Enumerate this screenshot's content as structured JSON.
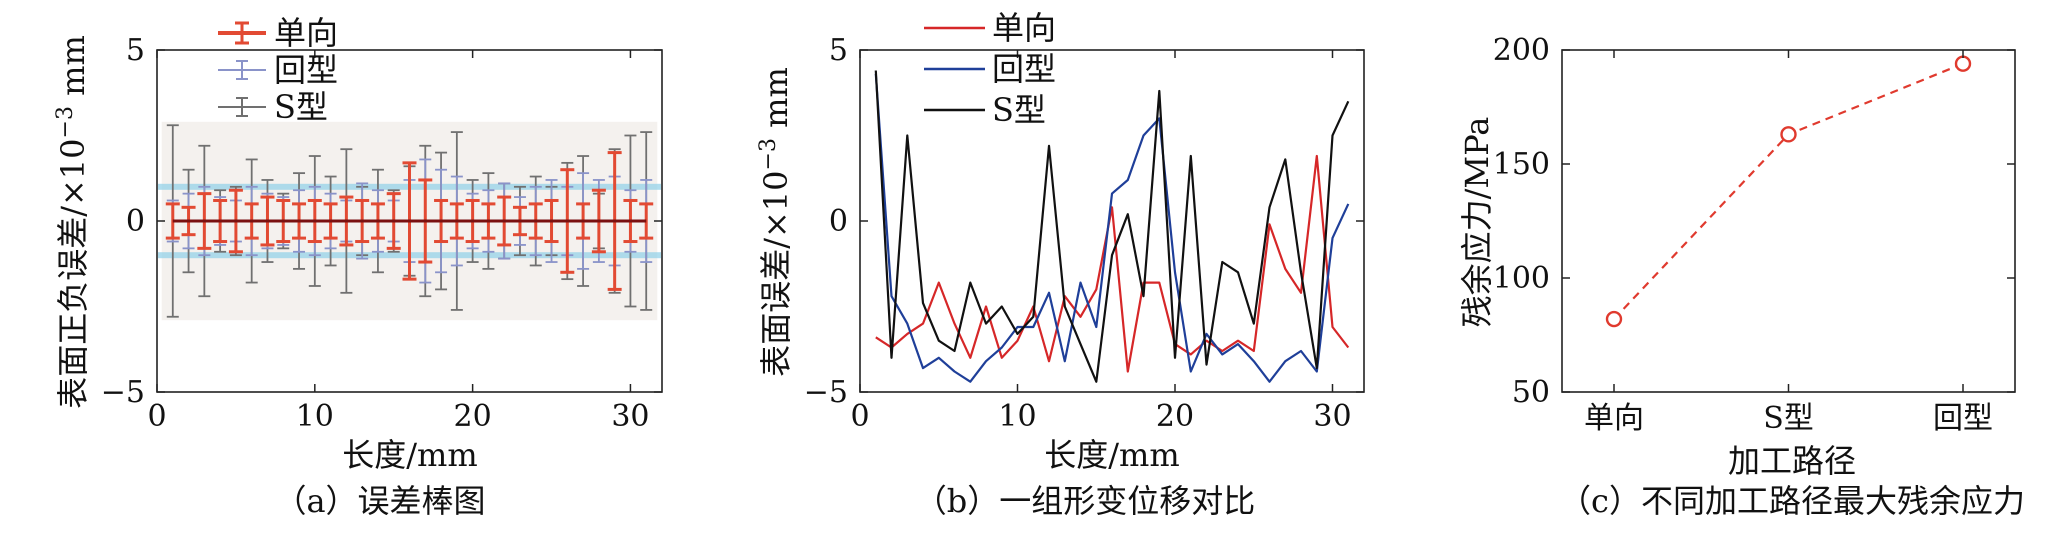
{
  "chart_data": [
    {
      "type": "errorbar",
      "caption": "（a）误差棒图",
      "xlabel": "长度/mm",
      "ylabel": "表面正负误差/×10⁻³ mm",
      "xlim": [
        0,
        32
      ],
      "ylim": [
        -5,
        5
      ],
      "xticks": [
        0,
        10,
        20,
        30
      ],
      "yticks": [
        -5,
        0,
        5
      ],
      "tick_labels_x": [
        "0",
        "10",
        "20",
        "30"
      ],
      "tick_labels_y": [
        "−5",
        "0",
        "5"
      ],
      "legend": [
        "单向",
        "回型",
        "S型"
      ],
      "legend_position": "top-left",
      "band": {
        "upper": 1.0,
        "lower": -1.0,
        "color": "#8fd0e8"
      },
      "x": [
        1,
        2,
        3,
        4,
        5,
        6,
        7,
        8,
        9,
        10,
        11,
        12,
        13,
        14,
        15,
        16,
        17,
        18,
        19,
        20,
        21,
        22,
        23,
        24,
        25,
        26,
        27,
        28,
        29,
        30,
        31
      ],
      "series": [
        {
          "name": "单向",
          "color": "#e24a33",
          "errors": [
            0.5,
            0.4,
            0.8,
            0.6,
            0.9,
            0.5,
            0.7,
            0.6,
            0.5,
            0.6,
            0.5,
            0.7,
            0.6,
            0.5,
            0.8,
            1.7,
            1.2,
            0.6,
            0.5,
            0.6,
            0.5,
            0.7,
            0.4,
            0.5,
            0.6,
            1.5,
            0.5,
            0.9,
            2.0,
            0.6,
            0.5
          ]
        },
        {
          "name": "回型",
          "color": "#8a93c9",
          "errors": [
            0.6,
            0.8,
            1.0,
            0.7,
            0.6,
            1.0,
            0.8,
            0.7,
            0.9,
            1.0,
            0.8,
            0.6,
            1.1,
            0.9,
            0.6,
            1.2,
            1.8,
            1.5,
            1.3,
            0.8,
            0.9,
            1.1,
            0.7,
            1.0,
            1.2,
            1.0,
            1.4,
            1.2,
            1.3,
            0.9,
            1.2
          ]
        },
        {
          "name": "S型",
          "color": "#707070",
          "errors": [
            2.8,
            1.5,
            2.2,
            0.9,
            1.0,
            1.8,
            1.2,
            0.8,
            1.4,
            1.9,
            1.3,
            2.1,
            1.0,
            1.5,
            0.9,
            1.6,
            2.2,
            2.0,
            2.6,
            1.2,
            1.4,
            1.1,
            1.0,
            1.3,
            1.0,
            1.7,
            1.9,
            0.8,
            2.1,
            2.5,
            2.6
          ]
        }
      ]
    },
    {
      "type": "line",
      "caption": "（b）一组形变位移对比",
      "xlabel": "长度/mm",
      "ylabel": "表面误差/×10⁻³ mm",
      "xlim": [
        0,
        32
      ],
      "ylim": [
        -5,
        5
      ],
      "xticks": [
        0,
        10,
        20,
        30
      ],
      "yticks": [
        -5,
        0,
        5
      ],
      "tick_labels_x": [
        "0",
        "10",
        "20",
        "30"
      ],
      "tick_labels_y": [
        "−5",
        "0",
        "5"
      ],
      "legend": [
        "单向",
        "回型",
        "S型"
      ],
      "legend_position": "top-center",
      "x": [
        1,
        2,
        3,
        4,
        5,
        6,
        7,
        8,
        9,
        10,
        11,
        12,
        13,
        14,
        15,
        16,
        17,
        18,
        19,
        20,
        21,
        22,
        23,
        24,
        25,
        26,
        27,
        28,
        29,
        30,
        31
      ],
      "series": [
        {
          "name": "单向",
          "color": "#d62728",
          "values": [
            -3.4,
            -3.7,
            -3.3,
            -3.0,
            -1.8,
            -3.0,
            -4.0,
            -2.5,
            -4.0,
            -3.5,
            -2.5,
            -4.1,
            -2.2,
            -2.8,
            -2.0,
            0.4,
            -4.4,
            -1.8,
            -1.8,
            -3.6,
            -3.9,
            -3.5,
            -3.8,
            -3.5,
            -3.8,
            -0.1,
            -1.4,
            -2.1,
            1.9,
            -3.1,
            -3.7
          ]
        },
        {
          "name": "回型",
          "color": "#1f3f99",
          "values": [
            4.3,
            -2.2,
            -3.0,
            -4.3,
            -4.0,
            -4.4,
            -4.7,
            -4.1,
            -3.7,
            -3.1,
            -3.1,
            -2.1,
            -4.1,
            -1.8,
            -3.1,
            0.8,
            1.2,
            2.5,
            3.0,
            -1.5,
            -4.4,
            -3.3,
            -3.9,
            -3.6,
            -4.1,
            -4.7,
            -4.1,
            -3.8,
            -4.4,
            -0.5,
            0.5
          ]
        },
        {
          "name": "S型",
          "color": "#111111",
          "values": [
            4.4,
            -4.0,
            2.5,
            -2.4,
            -3.5,
            -3.8,
            -1.8,
            -3.0,
            -2.5,
            -3.3,
            -2.8,
            2.2,
            -2.5,
            -3.6,
            -4.7,
            -1.0,
            0.2,
            -2.2,
            3.8,
            -4.0,
            1.9,
            -4.2,
            -1.2,
            -1.5,
            -3.0,
            0.4,
            1.8,
            -1.5,
            -4.3,
            2.5,
            3.5
          ]
        }
      ]
    },
    {
      "type": "line",
      "caption": "（c）不同加工路径最大残余应力",
      "xlabel": "加工路径",
      "ylabel": "残余应力/MPa",
      "categories": [
        "单向",
        "S型",
        "回型"
      ],
      "ylim": [
        50,
        200
      ],
      "yticks": [
        50,
        100,
        150,
        200
      ],
      "tick_labels_y": [
        "50",
        "100",
        "150",
        "200"
      ],
      "series": [
        {
          "name": "",
          "color": "#e03a2e",
          "style": "dashed",
          "marker": "open-circle",
          "values": [
            82,
            163,
            194
          ]
        }
      ]
    }
  ]
}
